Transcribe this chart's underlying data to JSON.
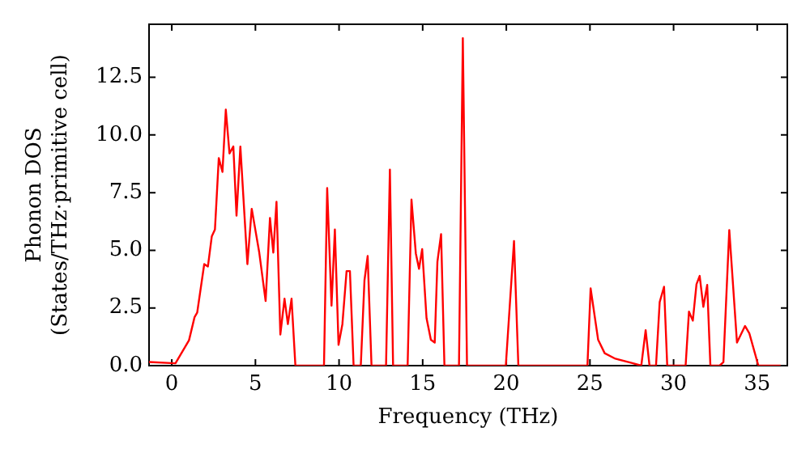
{
  "chart_data": {
    "type": "line",
    "xlabel": "Frequency (THz)",
    "ylabel": "Phonon DOS\n(States/THz·primitive cell)",
    "xlim": [
      -1.36,
      36.8
    ],
    "ylim": [
      0,
      14.8
    ],
    "xticks": [
      0,
      5,
      10,
      15,
      20,
      25,
      30,
      35
    ],
    "yticks": [
      {
        "value": 0,
        "label": "0.0"
      },
      {
        "value": 2.5,
        "label": "2.5"
      },
      {
        "value": 5,
        "label": "5.0"
      },
      {
        "value": 7.5,
        "label": "7.5"
      },
      {
        "value": 10,
        "label": "10.0"
      },
      {
        "value": 12.5,
        "label": "12.5"
      }
    ],
    "grid": false,
    "legend": false,
    "marker": "none",
    "line_style": "solid",
    "series": [
      {
        "color": "#ff0000",
        "x": [
          -1.36,
          -1.29,
          0.22,
          1.03,
          1.36,
          1.52,
          1.94,
          2.16,
          2.39,
          2.58,
          2.81,
          3.03,
          3.23,
          3.45,
          3.68,
          3.87,
          4.1,
          4.52,
          4.78,
          5.23,
          5.61,
          5.87,
          6.07,
          6.26,
          6.49,
          6.74,
          6.94,
          7.16,
          7.39,
          9.1,
          9.29,
          9.55,
          9.75,
          9.97,
          10.2,
          10.45,
          10.65,
          10.87,
          11.3,
          11.52,
          11.71,
          11.94,
          12.81,
          13.04,
          13.23,
          14.1,
          14.33,
          14.59,
          14.78,
          14.97,
          15.23,
          15.49,
          15.72,
          15.88,
          16.1,
          16.3,
          17.17,
          17.4,
          17.65,
          19.97,
          20.46,
          20.72,
          24.85,
          25.04,
          25.49,
          25.88,
          26.52,
          27.49,
          28.07,
          28.33,
          28.56,
          28.95,
          29.17,
          29.43,
          29.62,
          30.72,
          30.92,
          31.15,
          31.37,
          31.56,
          31.78,
          32.01,
          32.2,
          32.75,
          32.98,
          33.33,
          33.79,
          34.27,
          34.53,
          35.07,
          36.4
        ],
        "values": [
          0.16,
          0.16,
          0.1,
          1.1,
          2.1,
          2.3,
          4.4,
          4.3,
          5.6,
          5.9,
          9.0,
          8.4,
          11.1,
          9.2,
          9.5,
          6.5,
          9.5,
          4.4,
          6.8,
          4.9,
          2.8,
          6.4,
          4.9,
          7.1,
          1.35,
          2.9,
          1.8,
          2.9,
          0,
          0,
          7.7,
          2.6,
          5.9,
          0.9,
          1.8,
          4.1,
          4.1,
          0,
          0,
          3.7,
          4.75,
          0,
          0,
          8.5,
          0,
          0,
          7.2,
          4.87,
          4.2,
          5.05,
          2.06,
          1.12,
          1.0,
          4.5,
          5.7,
          0,
          0,
          14.2,
          0,
          0,
          5.4,
          0,
          0,
          3.35,
          1.12,
          0.54,
          0.3,
          0.12,
          0,
          1.54,
          0,
          0,
          2.76,
          3.42,
          0,
          0,
          2.34,
          1.95,
          3.53,
          3.89,
          2.55,
          3.5,
          0,
          0,
          0.15,
          5.88,
          1.0,
          1.72,
          1.4,
          0,
          0
        ]
      }
    ]
  }
}
